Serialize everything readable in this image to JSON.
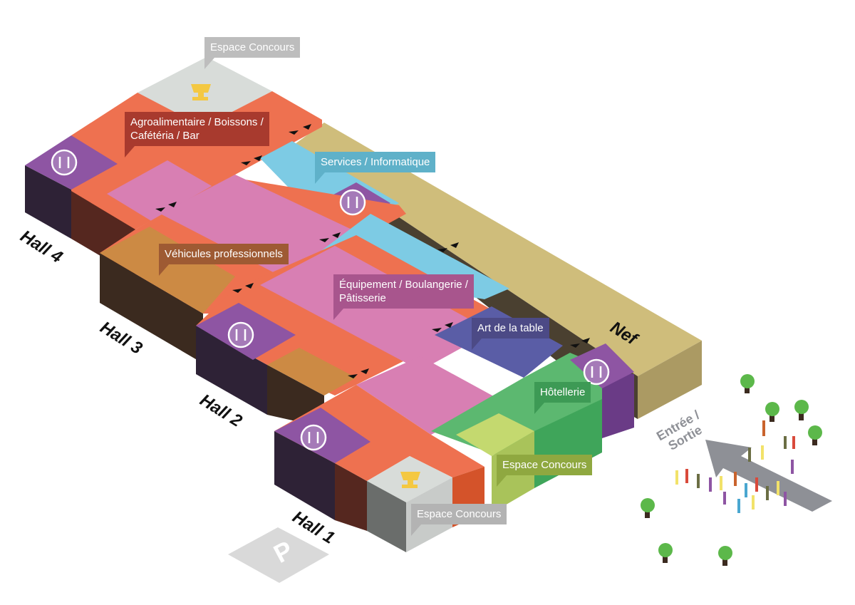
{
  "labels": {
    "espace_concours_top": "Espace Concours",
    "agro": "Agroalimentaire / Boissons / Cafétéria / Bar",
    "agro_line1": "Agroalimentaire / Boissons /",
    "agro_line2": "Cafétéria / Bar",
    "services": "Services / Informatique",
    "vehicules": "Véhicules professionnels",
    "equipement_line1": "Équipement / Boulangerie /",
    "equipement_line2": "Pâtisserie",
    "art_table": "Art de la table",
    "hotellerie": "Hôtellerie",
    "espace_concours_right": "Espace Concours",
    "espace_concours_bottom": "Espace Concours"
  },
  "halls": [
    "Hall 4",
    "Hall 3",
    "Hall 2",
    "Hall 1"
  ],
  "nef": "Nef",
  "entrance": {
    "line1": "Entrée /",
    "line2": "Sortie"
  },
  "parking": "P",
  "icons": {
    "restaurant": "restaurant-icon",
    "trophy": "trophy-icon",
    "parking": "parking-icon",
    "tree": "tree-icon",
    "door": "door-arrows-icon"
  },
  "colors": {
    "agro": "#ee7150",
    "restaurant": "#8e55a3",
    "pink": "#d87fb3",
    "services": "#7dcbe4",
    "nef": "#cfbd7b",
    "vehicules": "#cc8a44",
    "art_table": "#5a5da6",
    "hotellerie": "#5cb870",
    "espace_concours": "#c4d96f",
    "gray": "#d8dcd9"
  }
}
